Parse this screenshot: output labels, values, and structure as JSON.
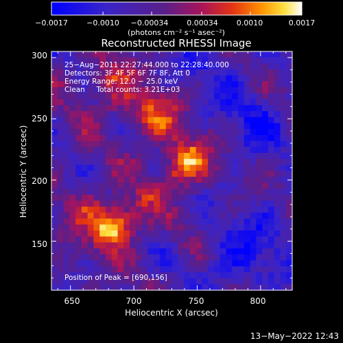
{
  "colorbar": {
    "tick_labels": [
      "−0.0017",
      "−0.0010",
      "−0.00034",
      "0.00034",
      "0.0010",
      "0.0017"
    ],
    "tick_values": [
      -0.0017,
      -0.001,
      -0.00034,
      0.00034,
      0.001,
      0.0017
    ],
    "range": [
      -0.0017,
      0.0017
    ],
    "unit_label": "(photons cm⁻² s⁻¹ asec⁻²)"
  },
  "chart_data": {
    "type": "heatmap",
    "title": "Reconstructed RHESSI Image",
    "xlabel": "Heliocentric X (arcsec)",
    "ylabel": "Heliocentric Y (arcsec)",
    "xlim": [
      635,
      825
    ],
    "ylim": [
      110,
      305
    ],
    "x_ticks": [
      650,
      700,
      750,
      800
    ],
    "y_ticks": [
      150,
      200,
      250,
      300
    ],
    "x_tick_labels": [
      "650",
      "700",
      "750",
      "800"
    ],
    "y_tick_labels": [
      "150",
      "200",
      "250",
      "300"
    ],
    "annotations": [
      "25−Aug−2011 22:27:44.000 to 22:28:40.000",
      "Detectors: 3F 4F 5F 6F 7F 8F, Att 0",
      "Energy Range: 12.0 − 25.0 keV",
      "Clean     Total counts: 3.21E+03"
    ],
    "peak_label": "Position of Peak = [690,156]",
    "peak_position": [
      690,
      156
    ],
    "sources": [
      {
        "x": 685,
        "y": 163,
        "value": 0.0017
      },
      {
        "x": 742,
        "y": 214,
        "value": 0.00125
      },
      {
        "x": 718,
        "y": 258,
        "value": 0.00095
      },
      {
        "x": 683,
        "y": 283,
        "value": 0.0008
      },
      {
        "x": 660,
        "y": 180,
        "value": 0.0006
      }
    ]
  },
  "footer": {
    "timestamp": "13−May−2022 12:43"
  },
  "colors": {
    "background": "#000000",
    "axis": "#ffffff",
    "cmap_low": "#0000ff",
    "cmap_mid": "#4b0f7d",
    "cmap_high": "#ffffe6"
  }
}
